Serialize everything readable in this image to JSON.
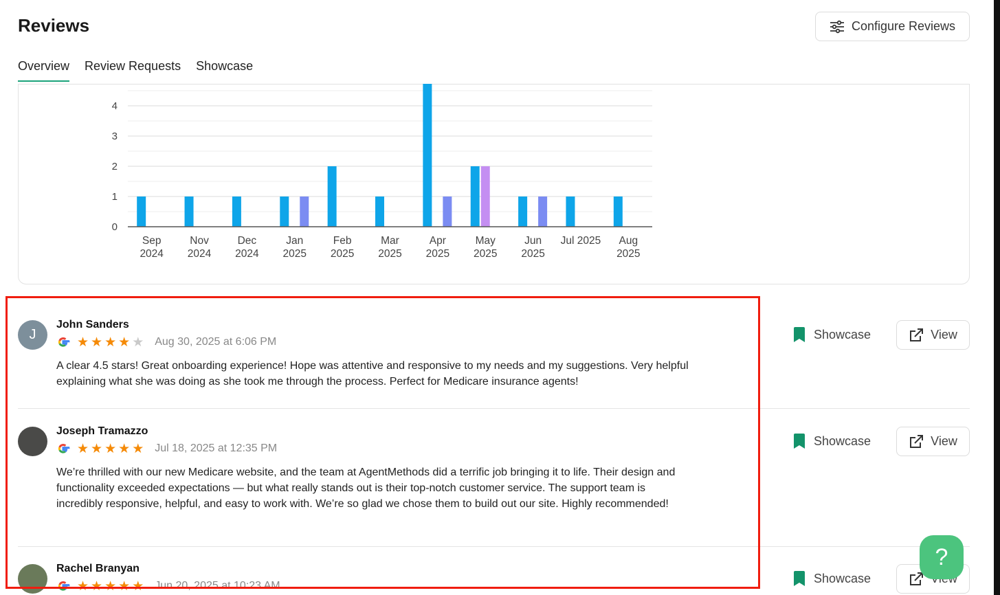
{
  "header": {
    "title": "Reviews",
    "configure_label": "Configure Reviews"
  },
  "tabs": [
    {
      "label": "Overview",
      "active": true
    },
    {
      "label": "Review Requests"
    },
    {
      "label": "Showcase"
    }
  ],
  "colors": {
    "accent": "#1aa37a",
    "series_a": "#0ea5e9",
    "series_b": "#c48ef2",
    "series_c": "#7b8cf2",
    "star": "#f58a07",
    "showcase": "#13936a",
    "help": "#4cc47e"
  },
  "chart_data": {
    "type": "bar",
    "categories": [
      "Sep 2024",
      "Nov 2024",
      "Dec 2024",
      "Jan 2025",
      "Feb 2025",
      "Mar 2025",
      "Apr 2025",
      "May 2025",
      "Jun 2025",
      "Jul 2025",
      "Aug 2025"
    ],
    "tick_labels": [
      [
        "Sep",
        "2024"
      ],
      [
        "Nov",
        "2024"
      ],
      [
        "Dec",
        "2024"
      ],
      [
        "Jan",
        "2025"
      ],
      [
        "Feb",
        "2025"
      ],
      [
        "Mar",
        "2025"
      ],
      [
        "Apr",
        "2025"
      ],
      [
        "May",
        "2025"
      ],
      [
        "Jun",
        "2025"
      ],
      [
        "Jul 2025",
        ""
      ],
      [
        "Aug",
        "2025"
      ]
    ],
    "series": [
      {
        "values": [
          1,
          1,
          1,
          1,
          2,
          1,
          5,
          2,
          1,
          1,
          1
        ]
      },
      {
        "values": [
          0,
          0,
          0,
          0,
          0,
          0,
          0,
          2,
          0,
          0,
          0
        ]
      },
      {
        "values": [
          0,
          0,
          0,
          1,
          0,
          0,
          1,
          0,
          1,
          0,
          0
        ]
      }
    ],
    "yticks": [
      0,
      1,
      2,
      3,
      4
    ],
    "ylim": [
      0,
      5
    ],
    "grid": true
  },
  "reviews": [
    {
      "name": "John Sanders",
      "initial": "J",
      "source": "google",
      "rating": 4,
      "date": "Aug 30, 2025 at 6:06 PM",
      "text": "A clear 4.5 stars! Great onboarding experience! Hope was attentive and responsive to my needs and my suggestions. Very helpful explaining what she was doing as she took me through the process. Perfect for Medicare insurance agents!",
      "showcase_label": "Showcase",
      "view_label": "View"
    },
    {
      "name": "Joseph Tramazzo",
      "initial": "",
      "source": "google",
      "rating": 5,
      "date": "Jul 18, 2025 at 12:35 PM",
      "text": "We’re thrilled with our new Medicare website, and the team at AgentMethods did a terrific job bringing it to life. Their design and functionality exceeded expectations — but what really stands out is their top-notch customer service. The support team is incredibly responsive, helpful, and easy to work with. We’re so glad we chose them to build out our site. Highly recommended!",
      "showcase_label": "Showcase",
      "view_label": "View"
    },
    {
      "name": "Rachel Branyan",
      "initial": "",
      "source": "google",
      "rating": 5,
      "date": "Jun 20, 2025 at 10:23 AM",
      "text": "",
      "showcase_label": "Showcase",
      "view_label": "View"
    }
  ],
  "help": {
    "label": "?"
  }
}
